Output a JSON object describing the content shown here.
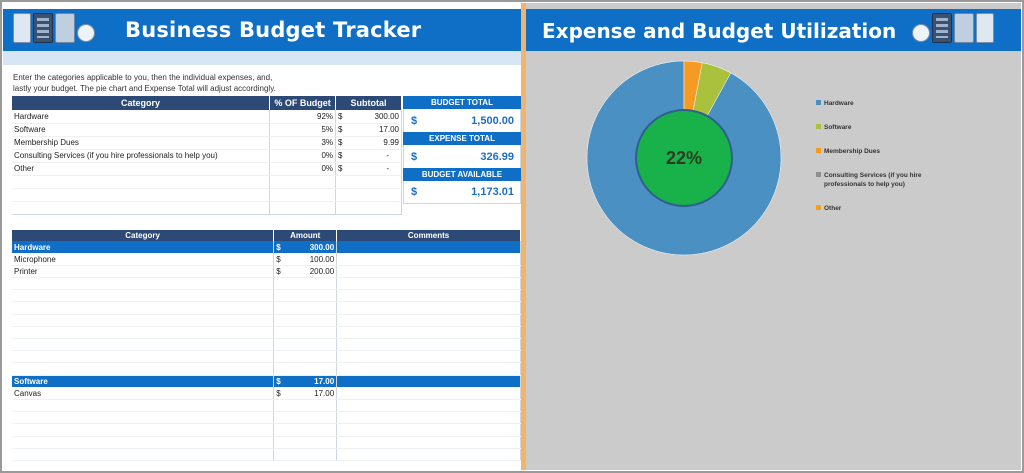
{
  "left": {
    "title": "Business Budget Tracker",
    "intro_line1": "Enter the categories applicable to you, then the individual expenses, and,",
    "intro_line2": "lastly your budget. The pie chart and Expense Total will adjust accordingly.",
    "summary_table": {
      "headers": [
        "Category",
        "% OF Budget",
        "Subtotal"
      ],
      "rows": [
        {
          "category": "Hardware",
          "pct": "92%",
          "currency": "$",
          "subtotal": "300.00"
        },
        {
          "category": "Software",
          "pct": "5%",
          "currency": "$",
          "subtotal": "17.00"
        },
        {
          "category": "Membership Dues",
          "pct": "3%",
          "currency": "$",
          "subtotal": "9.99"
        },
        {
          "category": "Consulting Services (if you hire professionals to help you)",
          "pct": "0%",
          "currency": "$",
          "subtotal": "-"
        },
        {
          "category": "Other",
          "pct": "0%",
          "currency": "$",
          "subtotal": "-"
        }
      ]
    },
    "boxes": {
      "budget_total_label": "BUDGET TOTAL",
      "budget_total_currency": "$",
      "budget_total_value": "1,500.00",
      "expense_total_label": "EXPENSE TOTAL",
      "expense_total_currency": "$",
      "expense_total_value": "326.99",
      "budget_available_label": "BUDGET AVAILABLE",
      "budget_available_currency": "$",
      "budget_available_value": "1,173.01"
    },
    "detail_table": {
      "headers": [
        "Category",
        "Amount",
        "Comments"
      ],
      "group1": {
        "name": "Hardware",
        "currency": "$",
        "amount": "300.00"
      },
      "group1_rows": [
        {
          "item": "Microphone",
          "currency": "$",
          "amount": "100.00"
        },
        {
          "item": "Printer",
          "currency": "$",
          "amount": "200.00"
        }
      ],
      "group2": {
        "name": "Software",
        "currency": "$",
        "amount": "17.00"
      },
      "group2_rows": [
        {
          "item": "Canvas",
          "currency": "$",
          "amount": "17.00"
        }
      ]
    }
  },
  "right": {
    "title": "Expense and Budget Utilization",
    "center_label": "22%"
  },
  "chart_data": {
    "type": "pie",
    "title": "",
    "categories": [
      "Hardware",
      "Software",
      "Membership Dues",
      "Consulting Services (if you hire professionals to help you)",
      "Other"
    ],
    "values": [
      92,
      5,
      3,
      0,
      0
    ],
    "colors": [
      "#4a90c2",
      "#a9c13c",
      "#f59a23",
      "#8f8f8f",
      "#f8a10f"
    ],
    "inner_value": 22,
    "inner_color": "#19b14a",
    "legend_position": "right"
  },
  "colors": {
    "header_blue": "#0f6fc6",
    "table_header": "#2c4a75",
    "divider": "#f2b36b",
    "right_bg": "#cbcbcb"
  }
}
